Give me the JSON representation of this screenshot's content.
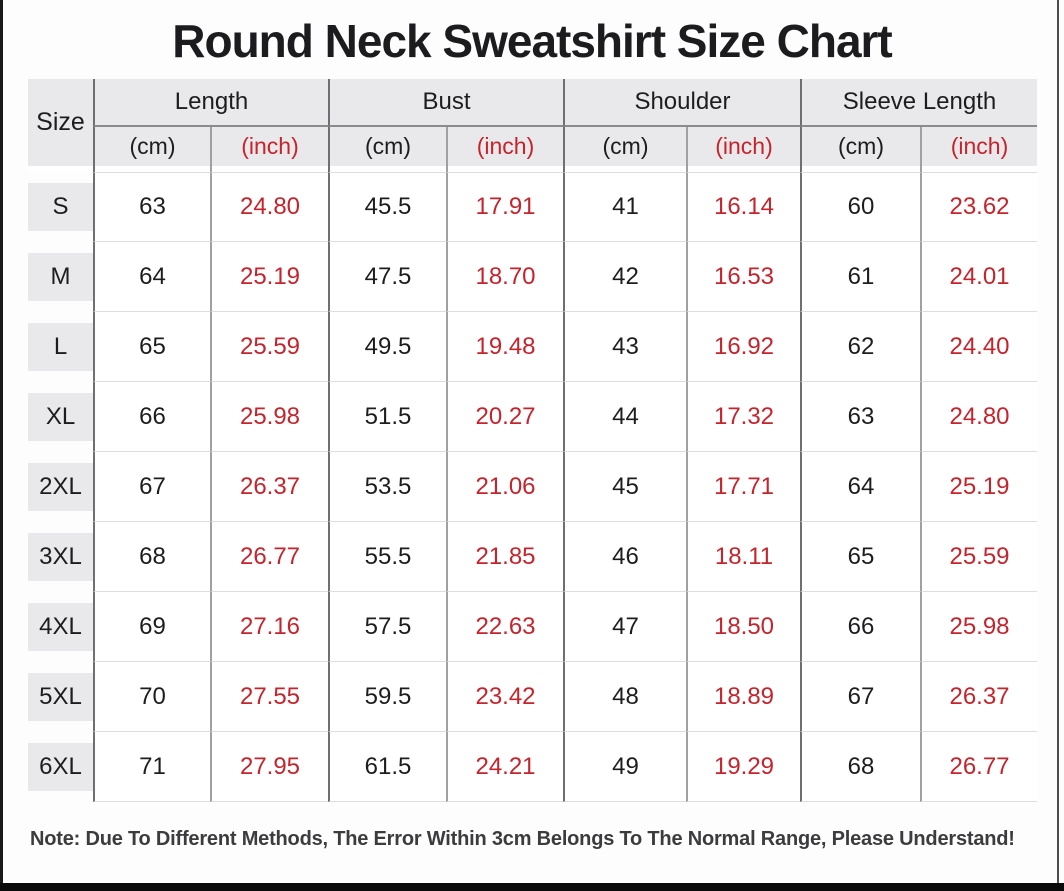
{
  "title": "Round Neck Sweatshirt Size Chart",
  "note": "Note: Due To Different Methods, The Error Within 3cm Belongs To The Normal Range, Please Understand!",
  "colors": {
    "inch_red": "#c5242c",
    "header_bg": "#e9e9eb",
    "size_cell_bg": "#e9e9eb",
    "grid_dark": "#6e6f73",
    "grid_light": "#9fa0a4",
    "row_separator": "#dddde1",
    "text_dark": "#1d1d1f",
    "note_text": "#3c3c3e"
  },
  "header": {
    "size_label": "Size",
    "groups": [
      "Length",
      "Bust",
      "Shoulder",
      "Sleeve Length"
    ],
    "cm_label": "(cm)",
    "inch_label": "(inch)"
  },
  "rows": [
    {
      "size": "S",
      "cells": [
        "63",
        "24.80",
        "45.5",
        "17.91",
        "41",
        "16.14",
        "60",
        "23.62"
      ]
    },
    {
      "size": "M",
      "cells": [
        "64",
        "25.19",
        "47.5",
        "18.70",
        "42",
        "16.53",
        "61",
        "24.01"
      ]
    },
    {
      "size": "L",
      "cells": [
        "65",
        "25.59",
        "49.5",
        "19.48",
        "43",
        "16.92",
        "62",
        "24.40"
      ]
    },
    {
      "size": "XL",
      "cells": [
        "66",
        "25.98",
        "51.5",
        "20.27",
        "44",
        "17.32",
        "63",
        "24.80"
      ]
    },
    {
      "size": "2XL",
      "cells": [
        "67",
        "26.37",
        "53.5",
        "21.06",
        "45",
        "17.71",
        "64",
        "25.19"
      ]
    },
    {
      "size": "3XL",
      "cells": [
        "68",
        "26.77",
        "55.5",
        "21.85",
        "46",
        "18.11",
        "65",
        "25.59"
      ]
    },
    {
      "size": "4XL",
      "cells": [
        "69",
        "27.16",
        "57.5",
        "22.63",
        "47",
        "18.50",
        "66",
        "25.98"
      ]
    },
    {
      "size": "5XL",
      "cells": [
        "70",
        "27.55",
        "59.5",
        "23.42",
        "48",
        "18.89",
        "67",
        "26.37"
      ]
    },
    {
      "size": "6XL",
      "cells": [
        "71",
        "27.95",
        "61.5",
        "24.21",
        "49",
        "19.29",
        "68",
        "26.77"
      ]
    }
  ],
  "chart_data": {
    "type": "table",
    "title": "Round Neck Sweatshirt Size Chart",
    "columns": [
      "Size",
      "Length (cm)",
      "Length (inch)",
      "Bust (cm)",
      "Bust (inch)",
      "Shoulder (cm)",
      "Shoulder (inch)",
      "Sleeve Length (cm)",
      "Sleeve Length (inch)"
    ],
    "rows": [
      [
        "S",
        63,
        24.8,
        45.5,
        17.91,
        41,
        16.14,
        60,
        23.62
      ],
      [
        "M",
        64,
        25.19,
        47.5,
        18.7,
        42,
        16.53,
        61,
        24.01
      ],
      [
        "L",
        65,
        25.59,
        49.5,
        19.48,
        43,
        16.92,
        62,
        24.4
      ],
      [
        "XL",
        66,
        25.98,
        51.5,
        20.27,
        44,
        17.32,
        63,
        24.8
      ],
      [
        "2XL",
        67,
        26.37,
        53.5,
        21.06,
        45,
        17.71,
        64,
        25.19
      ],
      [
        "3XL",
        68,
        26.77,
        55.5,
        21.85,
        46,
        18.11,
        65,
        25.59
      ],
      [
        "4XL",
        69,
        27.16,
        57.5,
        22.63,
        47,
        18.5,
        66,
        25.98
      ],
      [
        "5XL",
        70,
        27.55,
        59.5,
        23.42,
        48,
        18.89,
        67,
        26.37
      ],
      [
        "6XL",
        71,
        27.95,
        61.5,
        24.21,
        49,
        19.29,
        68,
        26.77
      ]
    ],
    "note": "Note: Due To Different Methods, The Error Within 3cm Belongs To The Normal Range, Please Understand!"
  }
}
